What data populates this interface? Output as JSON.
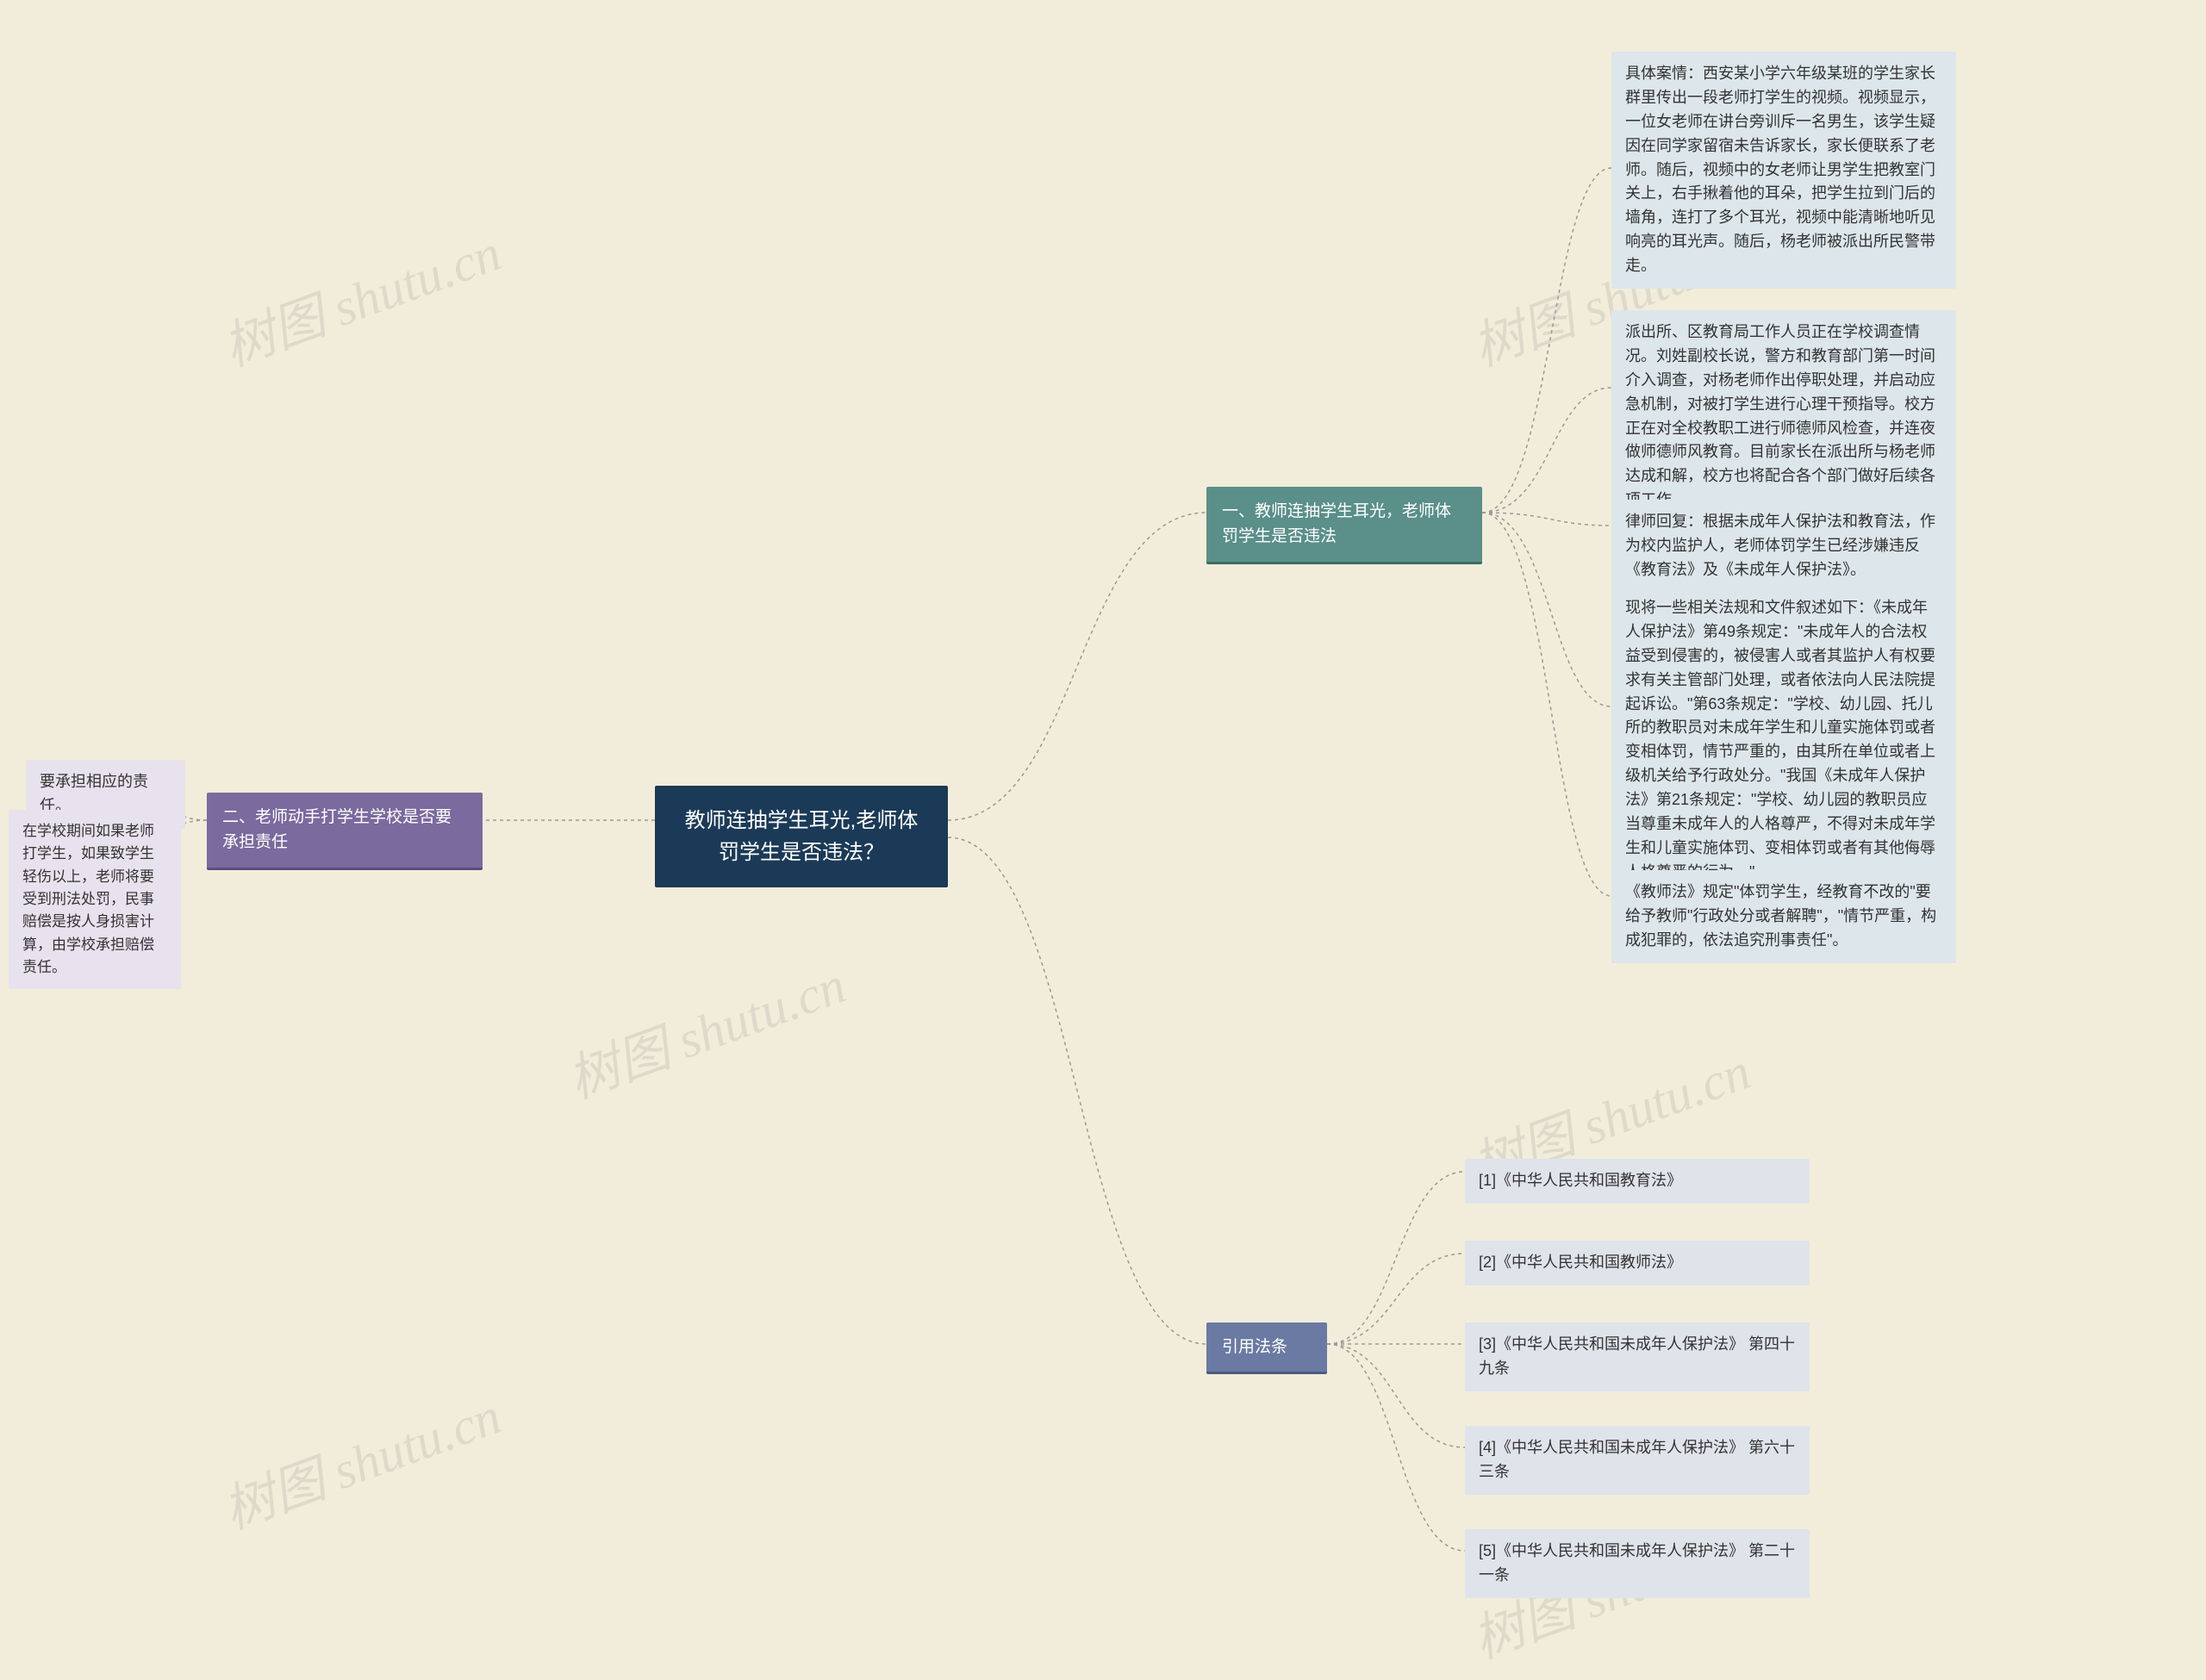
{
  "root": {
    "title_line1": "教师连抽学生耳光,老师体",
    "title_line2": "罚学生是否违法？"
  },
  "branch1": {
    "label": "一、教师连抽学生耳光，老师体罚学生是否违法",
    "color": "#5a8f8a",
    "leaves": [
      "具体案情：西安某小学六年级某班的学生家长群里传出一段老师打学生的视频。视频显示，一位女老师在讲台旁训斥一名男生，该学生疑因在同学家留宿未告诉家长，家长便联系了老师。随后，视频中的女老师让男学生把教室门关上，右手揪着他的耳朵，把学生拉到门后的墙角，连打了多个耳光，视频中能清晰地听见响亮的耳光声。随后，杨老师被派出所民警带走。",
      "派出所、区教育局工作人员正在学校调查情况。刘姓副校长说，警方和教育部门第一时间介入调查，对杨老师作出停职处理，并启动应急机制，对被打学生进行心理干预指导。校方正在对全校教职工进行师德师风检查，并连夜做师德师风教育。目前家长在派出所与杨老师达成和解，校方也将配合各个部门做好后续各项工作。",
      "律师回复：根据未成年人保护法和教育法，作为校内监护人，老师体罚学生已经涉嫌违反《教育法》及《未成年人保护法》。",
      "现将一些相关法规和文件叙述如下：《未成年人保护法》第49条规定：\"未成年人的合法权益受到侵害的，被侵害人或者其监护人有权要求有关主管部门处理，或者依法向人民法院提起诉讼。\"第63条规定：\"学校、幼儿园、托儿所的教职员对未成年学生和儿童实施体罚或者变相体罚，情节严重的，由其所在单位或者上级机关给予行政处分。\"我国《未成年人保护法》第21条规定：\"学校、幼儿园的教职员应当尊重未成年人的人格尊严，不得对未成年学生和儿童实施体罚、变相体罚或者有其他侮辱人格尊严的行为。\"",
      "《教师法》规定\"体罚学生，经教育不改的\"要给予教师\"行政处分或者解聘\"，\"情节严重，构成犯罪的，依法追究刑事责任\"。"
    ]
  },
  "branch2": {
    "label": "二、老师动手打学生学校是否要承担责任",
    "color": "#7a6a9e",
    "leaves": [
      "要承担相应的责任。",
      "在学校期间如果老师打学生，如果致学生轻伤以上，老师将要受到刑法处罚，民事赔偿是按人身损害计算，由学校承担赔偿责任。"
    ]
  },
  "branch3": {
    "label": "引用法条",
    "color": "#6b7aa3",
    "leaves": [
      "[1]《中华人民共和国教育法》",
      "[2]《中华人民共和国教师法》",
      "[3]《中华人民共和国未成年人保护法》 第四十九条",
      "[4]《中华人民共和国未成年人保护法》 第六十三条",
      "[5]《中华人民共和国未成年人保护法》 第二十一条"
    ]
  },
  "watermark_text": "树图 shutu.cn",
  "styling": {
    "background": "#f2edda",
    "root_bg": "#1b3a57",
    "root_fg": "#ffffff",
    "branch1_bg": "#5a8f8a",
    "branch2_bg": "#7a6a9e",
    "branch3_bg": "#6b7aa3",
    "leaf_blue_bg": "#dde6eb",
    "leaf_purple_bg": "#e7e2ed",
    "leaf_slate_bg": "#dfe3ea",
    "connector_color": "#999999",
    "connector_dash": "4 4",
    "watermark_color": "rgba(148,148,148,0.22)"
  }
}
